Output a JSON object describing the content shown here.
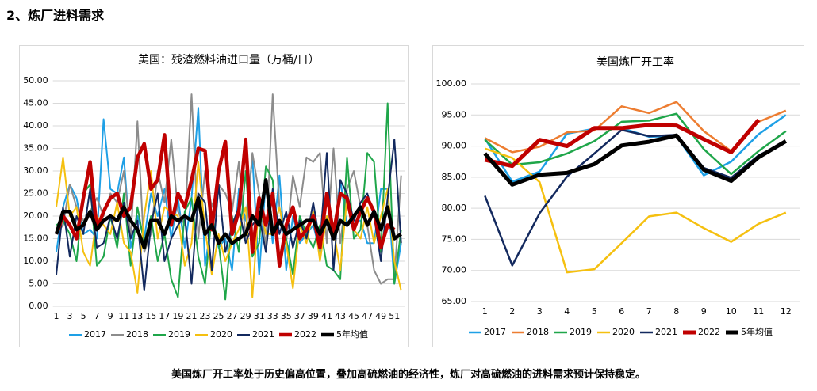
{
  "heading": "2、炼厂进料需求",
  "caption": "美国炼厂开工率处于历史偏高位置，叠加高硫燃油的经济性，炼厂对高硫燃油的进料需求预计保持稳定。",
  "chart_data": [
    {
      "type": "line",
      "title": "美国：残渣燃料油进口量（万桶/日）",
      "categories": [
        1,
        null,
        3,
        null,
        5,
        null,
        7,
        null,
        9,
        null,
        11,
        null,
        13,
        null,
        15,
        null,
        17,
        null,
        19,
        null,
        21,
        null,
        23,
        null,
        25,
        null,
        27,
        null,
        29,
        null,
        31,
        null,
        33,
        null,
        35,
        null,
        37,
        null,
        39,
        null,
        41,
        null,
        43,
        null,
        45,
        null,
        47,
        null,
        49,
        null,
        51,
        null
      ],
      "ylim": [
        0,
        50
      ],
      "yticks": [
        {
          "value": 0,
          "label": "0.00"
        },
        {
          "value": 5,
          "label": "5.00"
        },
        {
          "value": 10,
          "label": "10.00"
        },
        {
          "value": 15,
          "label": "15.00"
        },
        {
          "value": 20,
          "label": "20.00"
        },
        {
          "value": 25,
          "label": "25.00"
        },
        {
          "value": 30,
          "label": "30.00"
        },
        {
          "value": 35,
          "label": "35.00"
        },
        {
          "value": 40,
          "label": "40.00"
        },
        {
          "value": 45,
          "label": "45.00"
        },
        {
          "value": 50,
          "label": "50.00"
        }
      ],
      "grid": true,
      "series": [
        {
          "name": "2017",
          "color": "#1ea0e6",
          "width": 2,
          "values": [
            12,
            22,
            27,
            24,
            16,
            17,
            15,
            41.5,
            26,
            25,
            33,
            13,
            20,
            15,
            25,
            20,
            26,
            15,
            24,
            13,
            24,
            44,
            9,
            19,
            13,
            15,
            8,
            26,
            19,
            33,
            7,
            28,
            14,
            29,
            8,
            20,
            14,
            16,
            18,
            12,
            20,
            15,
            28,
            18,
            19,
            19,
            14,
            14,
            26,
            26,
            5,
            14
          ]
        },
        {
          "name": "2018",
          "color": "#8c8c8c",
          "width": 2,
          "values": [
            16,
            18,
            27,
            22,
            19,
            21,
            24,
            20,
            25,
            23,
            30,
            15,
            41,
            12,
            16,
            30,
            23,
            37,
            21,
            18,
            47,
            15,
            30,
            22,
            27,
            25,
            21,
            32,
            15,
            34,
            25,
            13,
            47,
            22,
            14,
            29,
            22,
            33,
            32,
            34,
            14,
            35,
            14,
            26,
            30,
            22,
            18,
            8,
            5,
            6,
            6,
            29
          ]
        },
        {
          "name": "2019",
          "color": "#1fa64a",
          "width": 2,
          "values": [
            18,
            19,
            16,
            10,
            25,
            27,
            9,
            11,
            20,
            13,
            25,
            9,
            22,
            14,
            20,
            10,
            16,
            6,
            2,
            21,
            24,
            11,
            5,
            20,
            14,
            1.5,
            20,
            12,
            30,
            11,
            14,
            31,
            28,
            10,
            15,
            7,
            20,
            16,
            13,
            18,
            9,
            8,
            6,
            33,
            15,
            17,
            34,
            32,
            12,
            45,
            5,
            17
          ]
        },
        {
          "name": "2020",
          "color": "#f5c010",
          "width": 2,
          "values": [
            22,
            33,
            20,
            22,
            12,
            9,
            20,
            18,
            16,
            23,
            14,
            12,
            3,
            20,
            30,
            15,
            22,
            21,
            20,
            9,
            14,
            32,
            17,
            7,
            16,
            10,
            14,
            17,
            22,
            2,
            24,
            16,
            16,
            22,
            14,
            4,
            18,
            14,
            21,
            10,
            20,
            17,
            8,
            24,
            17,
            15,
            22,
            14,
            20,
            26,
            10,
            3.5
          ]
        },
        {
          "name": "2021",
          "color": "#13295e",
          "width": 2,
          "values": [
            7,
            22,
            11,
            20,
            16,
            26,
            13,
            14,
            20,
            15,
            23,
            15,
            19,
            3.5,
            18,
            25,
            10,
            15,
            18,
            20,
            5,
            25,
            23,
            8,
            27,
            12,
            18,
            22,
            14,
            18,
            20,
            12,
            26,
            16,
            21,
            13,
            19,
            15,
            23,
            14,
            34,
            8,
            28,
            25,
            19,
            23,
            25,
            20,
            10,
            24,
            37,
            14
          ]
        },
        {
          "name": "2022",
          "color": "#c00000",
          "width": 4.5,
          "values": [
            16,
            20,
            18,
            15,
            24,
            32,
            17,
            21,
            24,
            25,
            20,
            22,
            33,
            36,
            26,
            28,
            38,
            18,
            25,
            22,
            28,
            35,
            34.5,
            17,
            30,
            36.5,
            16,
            21,
            37,
            12,
            24,
            18,
            25,
            9,
            18,
            22,
            15,
            17,
            20,
            13,
            25,
            16,
            25,
            24,
            17,
            21,
            24,
            21,
            13,
            18,
            17,
            null
          ]
        },
        {
          "name": "5年均值",
          "color": "#000000",
          "width": 4.5,
          "values": [
            16,
            21,
            21,
            17,
            18,
            21,
            17,
            19,
            20,
            19,
            22,
            19,
            17,
            13,
            19,
            19,
            16,
            20,
            19,
            20,
            19,
            24,
            16,
            18,
            14,
            16,
            14,
            15,
            16,
            20,
            18,
            28,
            16,
            19,
            16,
            17,
            18,
            19,
            19,
            16,
            19,
            15,
            19,
            18,
            20,
            22,
            18,
            21,
            17,
            22,
            15,
            16
          ]
        }
      ]
    },
    {
      "type": "line",
      "title": "美国炼厂开工率",
      "categories": [
        1,
        2,
        3,
        4,
        5,
        6,
        7,
        8,
        9,
        10,
        11,
        12
      ],
      "ylim": [
        65,
        100
      ],
      "yticks": [
        {
          "value": 65,
          "label": "65.00"
        },
        {
          "value": 70,
          "label": "70.00"
        },
        {
          "value": 75,
          "label": "75.00"
        },
        {
          "value": 80,
          "label": "80.00"
        },
        {
          "value": 85,
          "label": "85.00"
        },
        {
          "value": 90,
          "label": "90.00"
        },
        {
          "value": 95,
          "label": "95.00"
        },
        {
          "value": 100,
          "label": "100.00"
        }
      ],
      "grid": true,
      "series": [
        {
          "name": "2017",
          "color": "#1ea0e6",
          "width": 2.5,
          "values": [
            91.2,
            84.3,
            85.9,
            92.0,
            92.8,
            92.9,
            91.5,
            91.6,
            85.3,
            87.5,
            91.9,
            95.0
          ]
        },
        {
          "name": "2018",
          "color": "#ed7d31",
          "width": 2.5,
          "values": [
            91.3,
            89.0,
            89.9,
            92.2,
            92.5,
            96.4,
            95.3,
            97.1,
            92.4,
            89.2,
            93.9,
            95.7
          ]
        },
        {
          "name": "2019",
          "color": "#1fa64a",
          "width": 2.5,
          "values": [
            91.0,
            87.0,
            87.4,
            88.8,
            90.8,
            93.9,
            94.1,
            95.2,
            89.5,
            85.5,
            89.2,
            92.4
          ]
        },
        {
          "name": "2020",
          "color": "#f5c010",
          "width": 2.5,
          "values": [
            89.6,
            88.1,
            84.2,
            69.7,
            70.2,
            74.4,
            78.7,
            79.3,
            76.8,
            74.6,
            77.5,
            79.3
          ]
        },
        {
          "name": "2021",
          "color": "#13295e",
          "width": 2.5,
          "values": [
            82.0,
            70.8,
            79.2,
            85.1,
            88.8,
            92.6,
            91.6,
            91.8,
            86.5,
            84.9,
            88.5,
            90.7
          ]
        },
        {
          "name": "2022",
          "color": "#c00000",
          "width": 5,
          "values": [
            87.8,
            86.8,
            91.0,
            90.0,
            92.9,
            92.9,
            93.4,
            93.3,
            91.1,
            89.0,
            94.2,
            null
          ]
        },
        {
          "name": "5年均值",
          "color": "#000000",
          "width": 5,
          "values": [
            88.8,
            83.8,
            85.4,
            85.7,
            87.1,
            90.1,
            90.7,
            91.7,
            86.2,
            84.4,
            88.2,
            90.8
          ]
        }
      ]
    }
  ]
}
